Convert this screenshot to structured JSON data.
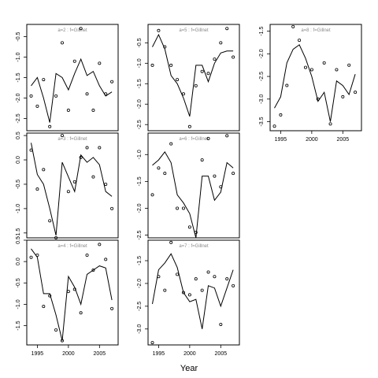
{
  "chart_data": {
    "type": "multi-panel scatter-line",
    "xlabel": "Year",
    "x": [
      1994,
      1995,
      1996,
      1997,
      1998,
      1999,
      2000,
      2001,
      2002,
      2003,
      2004,
      2005,
      2006,
      2007
    ],
    "panels": [
      {
        "title": "a=2  :  f=Gillnet",
        "ylim": [
          -2.8,
          -0.2
        ],
        "yticks": [
          -2.5,
          -2.0,
          -1.5,
          -1.0,
          -0.5
        ],
        "xticks": [],
        "observed": [
          [
            1994,
            -1.95
          ],
          [
            1995,
            -2.2
          ],
          [
            1996,
            -1.55
          ],
          [
            1997,
            -2.7
          ],
          [
            1998,
            -1.95
          ],
          [
            1999,
            -0.65
          ],
          [
            2000,
            -2.3
          ],
          [
            2001,
            -1.1
          ],
          [
            2002,
            -0.3
          ],
          [
            2003,
            -1.9
          ],
          [
            2004,
            -2.3
          ],
          [
            2005,
            -1.15
          ],
          [
            2006,
            -1.9
          ],
          [
            2007,
            -1.6
          ]
        ],
        "fitted": [
          [
            1994,
            -1.7
          ],
          [
            1995,
            -1.5
          ],
          [
            1996,
            -2.0
          ],
          [
            1997,
            -2.6
          ],
          [
            1998,
            -1.4
          ],
          [
            1999,
            -1.5
          ],
          [
            2000,
            -1.8
          ],
          [
            2001,
            -1.4
          ],
          [
            2002,
            -1.05
          ],
          [
            2003,
            -1.45
          ],
          [
            2004,
            -1.35
          ],
          [
            2005,
            -1.7
          ],
          [
            2006,
            -1.95
          ],
          [
            2007,
            -1.85
          ]
        ]
      },
      {
        "title": "a=5  :  f=Gillnet",
        "ylim": [
          -2.65,
          -0.05
        ],
        "yticks": [
          -2.5,
          -2.0,
          -1.5,
          -1.0,
          -0.5
        ],
        "xticks": [],
        "observed": [
          [
            1994,
            -1.05
          ],
          [
            1995,
            -0.2
          ],
          [
            1996,
            -0.6
          ],
          [
            1997,
            -1.05
          ],
          [
            1998,
            -1.4
          ],
          [
            1999,
            -1.75
          ],
          [
            2000,
            -2.55
          ],
          [
            2001,
            -1.55
          ],
          [
            2002,
            -1.2
          ],
          [
            2003,
            -1.25
          ],
          [
            2004,
            -0.9
          ],
          [
            2005,
            -0.5
          ],
          [
            2006,
            -0.15
          ],
          [
            2007,
            -0.85
          ]
        ],
        "fitted": [
          [
            1994,
            -0.6
          ],
          [
            1995,
            -0.3
          ],
          [
            1996,
            -0.65
          ],
          [
            1997,
            -1.3
          ],
          [
            1998,
            -1.5
          ],
          [
            1999,
            -1.85
          ],
          [
            2000,
            -2.3
          ],
          [
            2001,
            -1.05
          ],
          [
            2002,
            -1.05
          ],
          [
            2003,
            -1.45
          ],
          [
            2004,
            -1.0
          ],
          [
            2005,
            -0.75
          ],
          [
            2006,
            -0.7
          ],
          [
            2007,
            -0.7
          ]
        ]
      },
      {
        "title": "a=8  :  f=Gillnet",
        "ylim": [
          -3.7,
          -1.35
        ],
        "yticks": [
          -3.5,
          -3.0,
          -2.5,
          -2.0,
          -1.5
        ],
        "xticks": [
          1995,
          2000,
          2005
        ],
        "observed": [
          [
            1994,
            -3.6
          ],
          [
            1995,
            -3.35
          ],
          [
            1996,
            -2.7
          ],
          [
            1997,
            -1.4
          ],
          [
            1998,
            -1.7
          ],
          [
            1999,
            -2.3
          ],
          [
            2000,
            -2.35
          ],
          [
            2001,
            -3.0
          ],
          [
            2002,
            -2.2
          ],
          [
            2003,
            -3.55
          ],
          [
            2004,
            -2.35
          ],
          [
            2005,
            -2.95
          ],
          [
            2006,
            -2.25
          ],
          [
            2007,
            -2.85
          ]
        ],
        "fitted": [
          [
            1994,
            -3.2
          ],
          [
            1995,
            -2.95
          ],
          [
            1996,
            -2.2
          ],
          [
            1997,
            -1.9
          ],
          [
            1998,
            -1.8
          ],
          [
            1999,
            -2.1
          ],
          [
            2000,
            -2.5
          ],
          [
            2001,
            -3.05
          ],
          [
            2002,
            -2.85
          ],
          [
            2003,
            -3.5
          ],
          [
            2004,
            -2.6
          ],
          [
            2005,
            -2.7
          ],
          [
            2006,
            -2.9
          ],
          [
            2007,
            -2.45
          ]
        ]
      },
      {
        "title": "a=3  :  f=Gillnet",
        "ylim": [
          -1.6,
          0.55
        ],
        "yticks": [
          -1.5,
          -1.0,
          -0.5,
          0.0,
          0.5
        ],
        "xticks": [],
        "observed": [
          [
            1994,
            0.2
          ],
          [
            1995,
            -0.6
          ],
          [
            1996,
            -0.2
          ],
          [
            1997,
            -1.25
          ],
          [
            1998,
            -1.6
          ],
          [
            1999,
            0.5
          ],
          [
            2000,
            -0.65
          ],
          [
            2001,
            -0.45
          ],
          [
            2002,
            0.05
          ],
          [
            2003,
            0.25
          ],
          [
            2004,
            -0.35
          ],
          [
            2005,
            0.25
          ],
          [
            2006,
            -0.5
          ],
          [
            2007,
            -1.0
          ]
        ],
        "fitted": [
          [
            1994,
            0.35
          ],
          [
            1995,
            -0.3
          ],
          [
            1996,
            -0.5
          ],
          [
            1997,
            -1.0
          ],
          [
            1998,
            -1.55
          ],
          [
            1999,
            -0.05
          ],
          [
            2000,
            -0.35
          ],
          [
            2001,
            -0.65
          ],
          [
            2002,
            0.1
          ],
          [
            2003,
            -0.05
          ],
          [
            2004,
            0.05
          ],
          [
            2005,
            -0.1
          ],
          [
            2006,
            -0.65
          ],
          [
            2007,
            -0.75
          ]
        ]
      },
      {
        "title": "a=6  :  f=Gillnet",
        "ylim": [
          -2.55,
          -0.6
        ],
        "yticks": [
          -2.5,
          -2.0,
          -1.5,
          -1.0
        ],
        "xticks": [],
        "observed": [
          [
            1994,
            -1.75
          ],
          [
            1995,
            -1.25
          ],
          [
            1996,
            -1.35
          ],
          [
            1997,
            -0.8
          ],
          [
            1998,
            -2.0
          ],
          [
            1999,
            -2.0
          ],
          [
            2000,
            -2.35
          ],
          [
            2001,
            -2.45
          ],
          [
            2002,
            -1.1
          ],
          [
            2003,
            -0.7
          ],
          [
            2004,
            -1.4
          ],
          [
            2005,
            -1.6
          ],
          [
            2006,
            -0.65
          ],
          [
            2007,
            -1.35
          ]
        ],
        "fitted": [
          [
            1994,
            -1.2
          ],
          [
            1995,
            -1.1
          ],
          [
            1996,
            -0.95
          ],
          [
            1997,
            -1.15
          ],
          [
            1998,
            -1.75
          ],
          [
            1999,
            -1.9
          ],
          [
            2000,
            -2.1
          ],
          [
            2001,
            -2.55
          ],
          [
            2002,
            -1.4
          ],
          [
            2003,
            -1.4
          ],
          [
            2004,
            -1.85
          ],
          [
            2005,
            -1.7
          ],
          [
            2006,
            -1.15
          ],
          [
            2007,
            -1.25
          ]
        ]
      },
      {
        "title": "a=4  :  f=Gillnet",
        "ylim": [
          -1.95,
          0.5
        ],
        "yticks": [
          -1.5,
          -1.0,
          -0.5,
          0.0,
          0.5
        ],
        "xticks": [
          1995,
          2000,
          2005
        ],
        "observed": [
          [
            1994,
            0.1
          ],
          [
            1995,
            0.15
          ],
          [
            1996,
            -1.05
          ],
          [
            1997,
            -0.8
          ],
          [
            1998,
            -1.6
          ],
          [
            1999,
            -1.85
          ],
          [
            2000,
            -0.7
          ],
          [
            2001,
            -0.65
          ],
          [
            2002,
            -1.2
          ],
          [
            2003,
            0.15
          ],
          [
            2004,
            -0.2
          ],
          [
            2005,
            0.4
          ],
          [
            2006,
            0.05
          ],
          [
            2007,
            -1.1
          ]
        ],
        "fitted": [
          [
            1994,
            0.3
          ],
          [
            1995,
            0.1
          ],
          [
            1996,
            -0.75
          ],
          [
            1997,
            -0.75
          ],
          [
            1998,
            -1.25
          ],
          [
            1999,
            -1.85
          ],
          [
            2000,
            -0.35
          ],
          [
            2001,
            -0.6
          ],
          [
            2002,
            -1.0
          ],
          [
            2003,
            -0.3
          ],
          [
            2004,
            -0.2
          ],
          [
            2005,
            -0.1
          ],
          [
            2006,
            -0.15
          ],
          [
            2007,
            -0.9
          ]
        ]
      },
      {
        "title": "a=7  :  f=Gillnet",
        "ylim": [
          -3.35,
          -1.05
        ],
        "yticks": [
          -3.0,
          -2.5,
          -2.0,
          -1.5
        ],
        "xticks": [
          1995,
          2000,
          2005
        ],
        "observed": [
          [
            1994,
            -3.3
          ],
          [
            1995,
            -1.85
          ],
          [
            1996,
            -2.15
          ],
          [
            1997,
            -1.1
          ],
          [
            1998,
            -1.8
          ],
          [
            1999,
            -2.2
          ],
          [
            2000,
            -2.25
          ],
          [
            2001,
            -1.9
          ],
          [
            2002,
            -2.15
          ],
          [
            2003,
            -1.75
          ],
          [
            2004,
            -1.85
          ],
          [
            2005,
            -2.9
          ],
          [
            2006,
            -1.9
          ],
          [
            2007,
            -2.05
          ]
        ],
        "fitted": [
          [
            1994,
            -2.45
          ],
          [
            1995,
            -1.7
          ],
          [
            1996,
            -1.55
          ],
          [
            1997,
            -1.35
          ],
          [
            1998,
            -1.65
          ],
          [
            1999,
            -2.2
          ],
          [
            2000,
            -2.4
          ],
          [
            2001,
            -2.35
          ],
          [
            2002,
            -3.0
          ],
          [
            2003,
            -2.05
          ],
          [
            2004,
            -2.1
          ],
          [
            2005,
            -2.5
          ],
          [
            2006,
            -2.1
          ],
          [
            2007,
            -1.7
          ]
        ]
      }
    ]
  }
}
